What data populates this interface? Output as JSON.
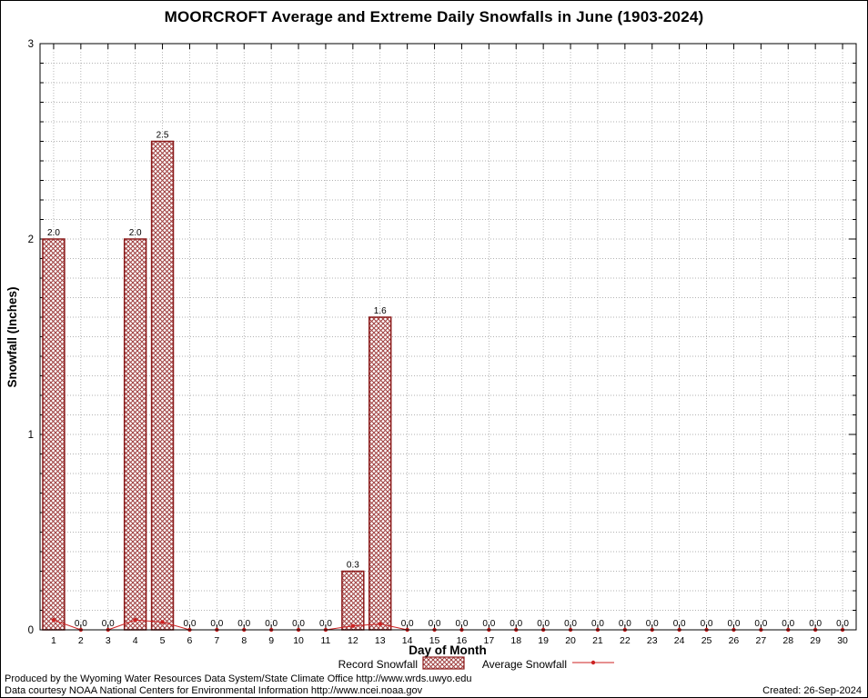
{
  "page": {
    "title": "MOORCROFT Average and Extreme Daily Snowfalls in June (1903-2024)"
  },
  "footer": {
    "produced_by": "Produced by the Wyoming Water Resources Data System/State Climate Office http://www.wrds.uwyo.edu",
    "data_courtesy": "Data courtesy NOAA National Centers for Environmental Information http://www.ncei.noaa.gov",
    "created": "Created: 26-Sep-2024"
  },
  "chart_data": {
    "type": "bar",
    "title": "MOORCROFT Average and Extreme Daily Snowfalls in June (1903-2024)",
    "xlabel": "Day of Month",
    "ylabel": "Snowfall (Inches)",
    "ylim": [
      0,
      3
    ],
    "yticks": [
      0,
      1,
      2,
      3
    ],
    "y_minor_step": 0.1,
    "grid": "dotted",
    "legend_position": "bottom-center",
    "categories": [
      1,
      2,
      3,
      4,
      5,
      6,
      7,
      8,
      9,
      10,
      11,
      12,
      13,
      14,
      15,
      16,
      17,
      18,
      19,
      20,
      21,
      22,
      23,
      24,
      25,
      26,
      27,
      28,
      29,
      30
    ],
    "series": [
      {
        "name": "Record Snowfall",
        "type": "bar",
        "values": [
          2.0,
          0.0,
          0.0,
          2.0,
          2.5,
          0.0,
          0.0,
          0.0,
          0.0,
          0.0,
          0.0,
          0.3,
          1.6,
          0.0,
          0.0,
          0.0,
          0.0,
          0.0,
          0.0,
          0.0,
          0.0,
          0.0,
          0.0,
          0.0,
          0.0,
          0.0,
          0.0,
          0.0,
          0.0,
          0.0
        ]
      },
      {
        "name": "Average Snowfall",
        "type": "line",
        "values": [
          0.05,
          0.0,
          0.0,
          0.05,
          0.04,
          0.0,
          0.0,
          0.0,
          0.0,
          0.0,
          0.0,
          0.02,
          0.03,
          0.0,
          0.0,
          0.0,
          0.0,
          0.0,
          0.0,
          0.0,
          0.0,
          0.0,
          0.0,
          0.0,
          0.0,
          0.0,
          0.0,
          0.0,
          0.0,
          0.0
        ]
      }
    ],
    "colors": {
      "bar_edge": "#8b1a1a",
      "bar_hatch": "#a04040",
      "line": "#cc2222",
      "grid": "#999999",
      "axis": "#000000",
      "background": "#ffffff"
    }
  }
}
